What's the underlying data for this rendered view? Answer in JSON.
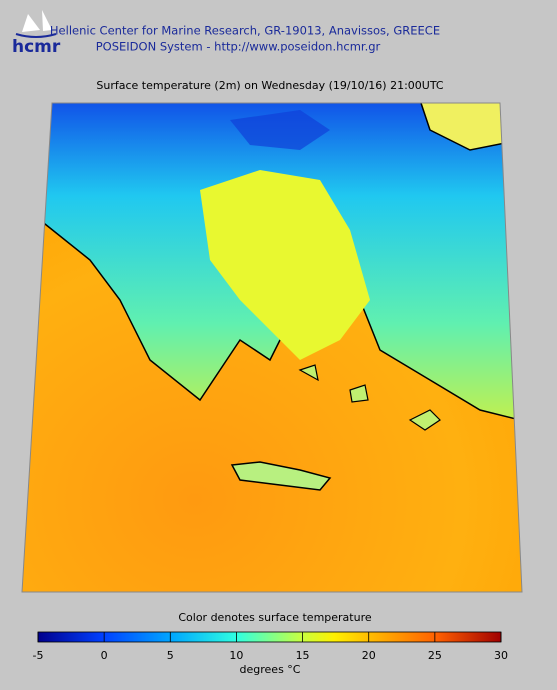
{
  "header": {
    "logo": "hcmr",
    "line1": "Hellenic Center for Marine Research, GR-19013, Anavissos, GREECE",
    "line2": "POSEIDON System - http://www.poseidon.hcmr.gr"
  },
  "map": {
    "title": "Surface temperature (2m) on Wednesday (19/10/16) 21:00UTC"
  },
  "colorbar": {
    "title": "Color denotes surface temperature",
    "range": [
      -5,
      30
    ],
    "ticks": [
      -5,
      0,
      5,
      10,
      15,
      20,
      25,
      30
    ],
    "label": "degrees °C"
  }
}
